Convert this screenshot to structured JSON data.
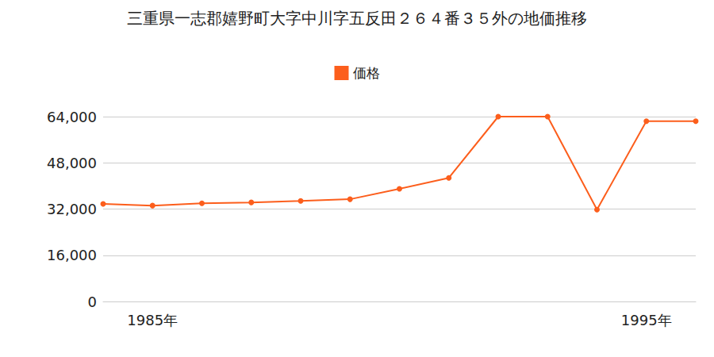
{
  "chart_data": {
    "type": "line",
    "title": "三重県一志郡嬉野町大字中川字五反田２６４番３５外の地価推移",
    "categories": [
      null,
      "1985年",
      null,
      null,
      null,
      null,
      null,
      null,
      null,
      null,
      null,
      "1995年",
      null
    ],
    "series": [
      {
        "name": "価格",
        "color": "#fc5e1c",
        "values": [
          33800,
          33200,
          34000,
          34300,
          34800,
          35400,
          39000,
          42800,
          64000,
          64000,
          31800,
          62400,
          62400
        ]
      }
    ],
    "ylim": [
      0,
      64000
    ],
    "yticks": [
      0,
      {
        "value": 16000,
        "label": "16,000"
      },
      {
        "value": 32000,
        "label": "32,000"
      },
      {
        "value": 48000,
        "label": "48,000"
      },
      {
        "value": 64000,
        "label": "64,000"
      }
    ],
    "grid": true,
    "legend": "top",
    "marker": "circle"
  }
}
